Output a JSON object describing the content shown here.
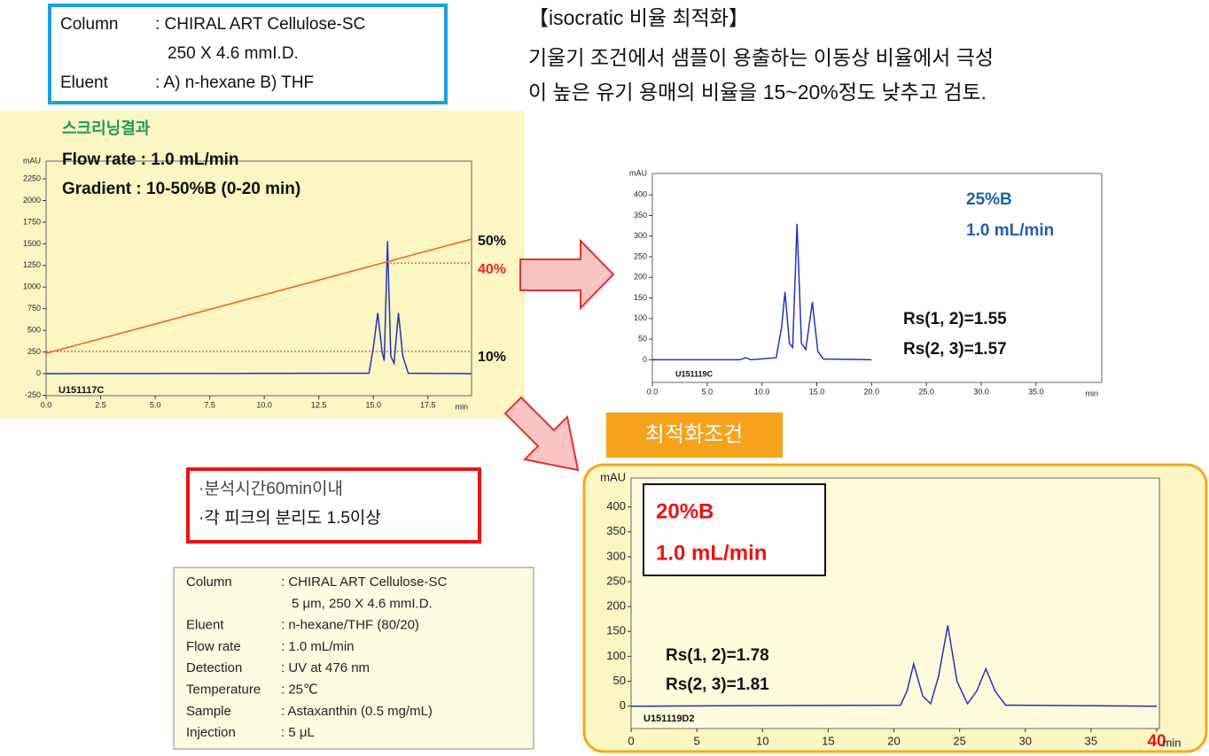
{
  "column_box": {
    "rows": [
      [
        "Column",
        ": CHIRAL ART Cellulose-SC"
      ],
      [
        "250 X 4.6 mmI.D."
      ],
      [
        "Eluent",
        ": A) n-hexane   B) THF"
      ]
    ]
  },
  "heading": {
    "lines": [
      "【isocratic 비율 최적화】",
      "기울기 조건에서 샘플이 용출하는 이동상 비율에서 극성",
      "이 높은 유기 용매의 비율을 15~20%정도 낮추고 검토."
    ]
  },
  "requirements": {
    "lines": [
      "·분석시간60min이내",
      "·각 피크의 분리도 1.5이상"
    ]
  },
  "optimal_title": "최적화조건",
  "conditions_table": {
    "rows": [
      {
        "label": "Column",
        "value": ": CHIRAL ART Cellulose-SC"
      },
      {
        "value": "5 μm, 250 X 4.6 mmI.D."
      },
      {
        "label": "Eluent",
        "value": ": n-hexane/THF (80/20)"
      },
      {
        "label": "Flow rate",
        "value": ": 1.0 mL/min"
      },
      {
        "label": "Detection",
        "value": ": UV at 476 nm"
      },
      {
        "label": "Temperature",
        "value": ": 25℃"
      },
      {
        "label": "Sample",
        "value": ": Astaxanthin (0.5 mg/mL)"
      },
      {
        "label": "Injection",
        "value": ": 5 μL"
      }
    ]
  },
  "chart_data": [
    {
      "type": "line",
      "x_label": "min",
      "y_label": "mAU",
      "xlim": [
        0,
        19.5
      ],
      "ylim": [
        -255,
        2455
      ],
      "xticks": [
        {
          "value": 0,
          "label": "0.0"
        },
        {
          "value": 2.5,
          "label": "2.5"
        },
        {
          "value": 5,
          "label": "5.0"
        },
        {
          "value": 7.5,
          "label": "7.5"
        },
        {
          "value": 10,
          "label": "10.0"
        },
        {
          "value": 12.5,
          "label": "12.5"
        },
        {
          "value": 15,
          "label": "15.0"
        },
        {
          "value": 17.5,
          "label": "17.5"
        }
      ],
      "yticks": [
        -250,
        0,
        250,
        500,
        750,
        1000,
        1250,
        1500,
        1750,
        2000,
        2250
      ],
      "series": [
        {
          "color": "#2233bb",
          "x": [
            0,
            14.8,
            15.0,
            15.2,
            15.4,
            15.5,
            15.65,
            15.8,
            15.95,
            16.15,
            16.35,
            16.6,
            19.5
          ],
          "values": [
            0,
            5,
            300,
            700,
            250,
            150,
            1530,
            200,
            120,
            700,
            200,
            5,
            0
          ]
        },
        {
          "color": "#ff5a1a",
          "x": [
            0,
            19.5
          ],
          "values": [
            235,
            1554
          ]
        }
      ],
      "reference_lines": [
        {
          "value": 1278,
          "from": 15.6,
          "color": "#dd2222"
        },
        {
          "value": 256,
          "from": 0,
          "color": "#dd2222"
        }
      ],
      "annotations": [
        {
          "text": "스크리닝결과",
          "color": "#1a9a5a"
        },
        {
          "text": "Flow rate : 1.0 mL/min",
          "color": "#111111"
        },
        {
          "text": "Gradient  : 10-50%B (0-20 min)",
          "color": "#111111"
        },
        {
          "text": "50%",
          "color": "#111111"
        },
        {
          "text": "40%",
          "color": "#ee2222"
        },
        {
          "text": "10%",
          "color": "#111111"
        },
        {
          "text": "U151117C",
          "color": "#111111"
        }
      ]
    },
    {
      "type": "line",
      "x_label": "min",
      "y_label": "mAU",
      "xlim": [
        0,
        41
      ],
      "ylim": [
        -55,
        452
      ],
      "xticks": [
        {
          "value": 0,
          "label": "0.0"
        },
        {
          "value": 5,
          "label": "5.0"
        },
        {
          "value": 10,
          "label": "10.0"
        },
        {
          "value": 15,
          "label": "15.0"
        },
        {
          "value": 20,
          "label": "20.0"
        },
        {
          "value": 25,
          "label": "25.0"
        },
        {
          "value": 30,
          "label": "30.0"
        },
        {
          "value": 35,
          "label": "35.0"
        }
      ],
      "yticks": [
        0,
        50,
        100,
        150,
        200,
        250,
        300,
        350,
        400
      ],
      "series": [
        {
          "color": "#2233bb",
          "x": [
            0,
            8,
            8.5,
            9,
            11.3,
            11.8,
            12.1,
            12.5,
            12.8,
            13.2,
            13.6,
            14.0,
            14.6,
            15.1,
            15.6,
            20
          ],
          "values": [
            0,
            0,
            5,
            0,
            5,
            80,
            165,
            40,
            30,
            330,
            40,
            25,
            140,
            20,
            2,
            0
          ]
        }
      ],
      "annotations": [
        {
          "text": "25%B",
          "color": "#1f5fb0"
        },
        {
          "text": "1.0 mL/min",
          "color": "#1f5fb0"
        },
        {
          "text": "Rs(1, 2)=1.55",
          "color": "#111111"
        },
        {
          "text": "Rs(2, 3)=1.57",
          "color": "#111111"
        },
        {
          "text": "U151119C",
          "color": "#111111"
        }
      ]
    },
    {
      "type": "line",
      "x_label": "min",
      "y_label": "mAU",
      "xlim": [
        0,
        40.2
      ],
      "ylim": [
        -45,
        458
      ],
      "xticks": [
        0,
        5,
        10,
        15,
        20,
        25,
        30,
        35,
        40
      ],
      "xtick_highlight": {
        "value": 40,
        "color": "#ee1111"
      },
      "yticks": [
        0,
        50,
        100,
        150,
        200,
        250,
        300,
        350,
        400
      ],
      "series": [
        {
          "color": "#2233bb",
          "x": [
            0,
            20.5,
            21.0,
            21.5,
            22.2,
            22.8,
            23.4,
            24.1,
            24.8,
            25.6,
            26.3,
            27.0,
            27.7,
            28.5,
            40
          ],
          "values": [
            0,
            2,
            30,
            85,
            20,
            5,
            60,
            162,
            50,
            5,
            30,
            75,
            30,
            2,
            0
          ]
        }
      ],
      "annotations": [
        {
          "text": "20%B",
          "color": "#ee1111"
        },
        {
          "text": "1.0 mL/min",
          "color": "#ee1111"
        },
        {
          "text": "Rs(1, 2)=1.78",
          "color": "#111111"
        },
        {
          "text": "Rs(2, 3)=1.81",
          "color": "#111111"
        },
        {
          "text": "U151119D2",
          "color": "#111111"
        }
      ]
    }
  ]
}
